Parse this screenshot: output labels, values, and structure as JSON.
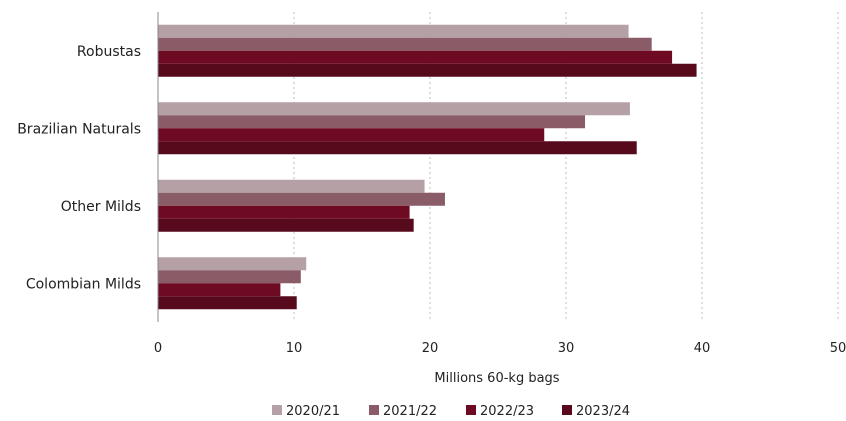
{
  "chart_data": {
    "type": "bar",
    "orientation": "horizontal",
    "title": "",
    "xlabel": "Millions 60-kg bags",
    "ylabel": "",
    "xlim": [
      0,
      50
    ],
    "xticks": [
      0,
      10,
      20,
      30,
      40,
      50
    ],
    "grid": "vertical dotted",
    "legend_position": "bottom",
    "categories": [
      "Robustas",
      "Brazilian Naturals",
      "Other Milds",
      "Colombian Milds"
    ],
    "series": [
      {
        "name": "2020/21",
        "color": "#b5a0a6",
        "values": [
          34.6,
          34.7,
          19.6,
          10.9
        ]
      },
      {
        "name": "2021/22",
        "color": "#8a5c68",
        "values": [
          36.3,
          31.4,
          21.1,
          10.5
        ]
      },
      {
        "name": "2022/23",
        "color": "#6e0a22",
        "values": [
          37.8,
          28.4,
          18.5,
          9.0
        ]
      },
      {
        "name": "2023/24",
        "color": "#570a1c",
        "values": [
          39.6,
          35.2,
          18.8,
          10.2
        ]
      }
    ]
  }
}
